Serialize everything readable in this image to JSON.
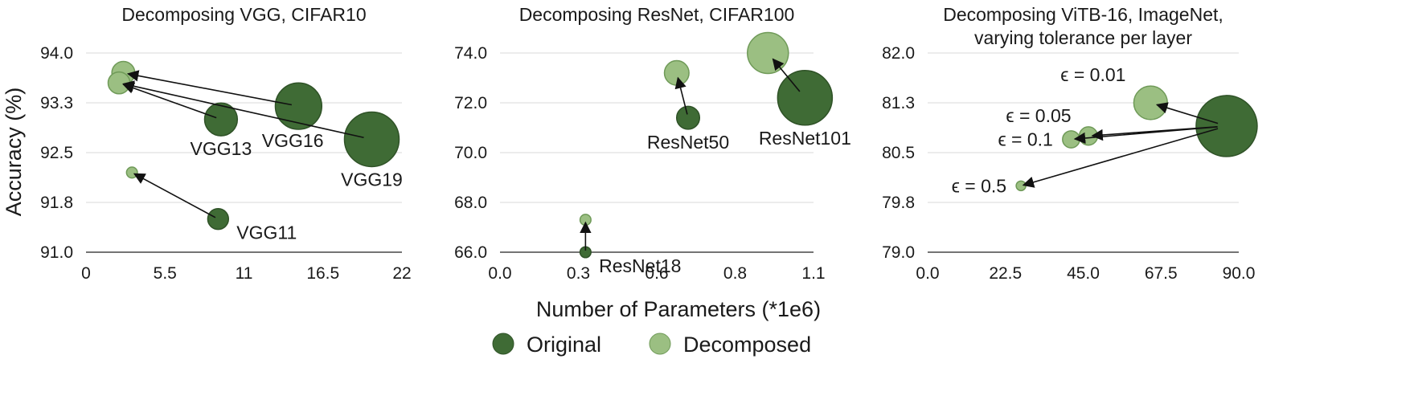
{
  "figure": {
    "ylabel": "Accuracy (%)",
    "xlabel": "Number of Parameters (*1e6)",
    "legend": [
      {
        "label": "Original",
        "color": "#3f6b35",
        "stroke": "#2f5227"
      },
      {
        "label": "Decomposed",
        "color": "#9bbf82",
        "stroke": "#6f9a58"
      }
    ]
  },
  "chart_data": [
    {
      "type": "scatter",
      "title": "Decomposing VGG, CIFAR10",
      "title_lines": [
        "Decomposing VGG, CIFAR10"
      ],
      "xlim": [
        0,
        22
      ],
      "ylim": [
        91.0,
        94.0
      ],
      "xticks": [
        "0",
        "5.5",
        "11",
        "16.5",
        "22"
      ],
      "yticks": [
        "91.0",
        "91.8",
        "92.5",
        "93.3",
        "94.0"
      ],
      "points": [
        {
          "id": "vgg11-orig",
          "series": "Original",
          "x": 9.2,
          "y": 91.5,
          "size": 0.38,
          "label": "VGG11",
          "label_pos": "right"
        },
        {
          "id": "vgg11-dec",
          "series": "Decomposed",
          "x": 3.2,
          "y": 92.2,
          "size": 0.2
        },
        {
          "id": "vgg13-orig",
          "series": "Original",
          "x": 9.4,
          "y": 93.0,
          "size": 0.6,
          "label": "VGG13",
          "label_pos": "below"
        },
        {
          "id": "vgg13-dec",
          "series": "Decomposed",
          "x": 2.3,
          "y": 93.55,
          "size": 0.4
        },
        {
          "id": "vgg16-orig",
          "series": "Original",
          "x": 14.8,
          "y": 93.2,
          "size": 0.85,
          "label": "VGG16",
          "label_pos": "belowleft"
        },
        {
          "id": "vgg16-dec",
          "series": "Decomposed",
          "x": 2.6,
          "y": 93.7,
          "size": 0.42
        },
        {
          "id": "vgg19-orig",
          "series": "Original",
          "x": 19.9,
          "y": 92.7,
          "size": 1.0,
          "label": "VGG19",
          "label_pos": "below"
        }
      ],
      "arrows": [
        {
          "from": "vgg11-orig",
          "to": "vgg11-dec"
        },
        {
          "from": "vgg13-orig",
          "to": "vgg13-dec"
        },
        {
          "from": "vgg16-orig",
          "to": "vgg16-dec"
        },
        {
          "from": "vgg19-orig",
          "to": "vgg13-dec"
        }
      ]
    },
    {
      "type": "scatter",
      "title": "Decomposing ResNet, CIFAR100",
      "title_lines": [
        "Decomposing ResNet, CIFAR100"
      ],
      "xlim": [
        0,
        1.1
      ],
      "ylim": [
        66.0,
        74.0
      ],
      "xticks": [
        "0.0",
        "0.3",
        "0.6",
        "0.8",
        "1.1"
      ],
      "yticks": [
        "66.0",
        "68.0",
        "70.0",
        "72.0",
        "74.0"
      ],
      "points": [
        {
          "id": "r18-orig",
          "series": "Original",
          "x": 0.3,
          "y": 66.0,
          "size": 0.2,
          "label": "ResNet18",
          "label_pos": "right"
        },
        {
          "id": "r18-dec",
          "series": "Decomposed",
          "x": 0.3,
          "y": 67.3,
          "size": 0.2
        },
        {
          "id": "r50-orig",
          "series": "Original",
          "x": 0.66,
          "y": 71.4,
          "size": 0.42,
          "label": "ResNet50",
          "label_pos": "below"
        },
        {
          "id": "r50-dec",
          "series": "Decomposed",
          "x": 0.62,
          "y": 73.2,
          "size": 0.45
        },
        {
          "id": "r101-orig",
          "series": "Original",
          "x": 1.07,
          "y": 72.2,
          "size": 1.0,
          "label": "ResNet101",
          "label_pos": "below"
        },
        {
          "id": "r101-dec",
          "series": "Decomposed",
          "x": 0.94,
          "y": 74.0,
          "size": 0.75
        }
      ],
      "arrows": [
        {
          "from": "r18-orig",
          "to": "r18-dec"
        },
        {
          "from": "r50-orig",
          "to": "r50-dec"
        },
        {
          "from": "r101-orig",
          "to": "r101-dec"
        }
      ]
    },
    {
      "type": "scatter",
      "title": "Decomposing ViTB-16, ImageNet, varying tolerance per layer",
      "title_lines": [
        "Decomposing ViTB-16, ImageNet,",
        "varying tolerance per layer"
      ],
      "xlim": [
        0,
        90
      ],
      "ylim": [
        79.0,
        82.0
      ],
      "xticks": [
        "0.0",
        "22.5",
        "45.0",
        "67.5",
        "90.0"
      ],
      "yticks": [
        "79.0",
        "79.8",
        "80.5",
        "81.3",
        "82.0"
      ],
      "points": [
        {
          "id": "vit-orig",
          "series": "Original",
          "x": 86.5,
          "y": 80.9,
          "size": 1.0
        },
        {
          "id": "vit-001",
          "series": "Decomposed",
          "x": 64.5,
          "y": 81.25,
          "size": 0.55,
          "label": "ϵ = 0.01",
          "label_pos": "aboveleft"
        },
        {
          "id": "vit-005",
          "series": "Decomposed",
          "x": 46.5,
          "y": 80.75,
          "size": 0.3,
          "label": "ϵ = 0.05",
          "label_pos": "aboveleft"
        },
        {
          "id": "vit-01",
          "series": "Decomposed",
          "x": 41.5,
          "y": 80.7,
          "size": 0.28,
          "label": "ϵ = 0.1",
          "label_pos": "left"
        },
        {
          "id": "vit-05",
          "series": "Decomposed",
          "x": 27.0,
          "y": 80.0,
          "size": 0.14,
          "label": "ϵ = 0.5",
          "label_pos": "left"
        }
      ],
      "arrows": [
        {
          "from": "vit-orig",
          "to": "vit-001"
        },
        {
          "from": "vit-orig",
          "to": "vit-005"
        },
        {
          "from": "vit-orig",
          "to": "vit-01"
        },
        {
          "from": "vit-orig",
          "to": "vit-05"
        }
      ]
    }
  ]
}
